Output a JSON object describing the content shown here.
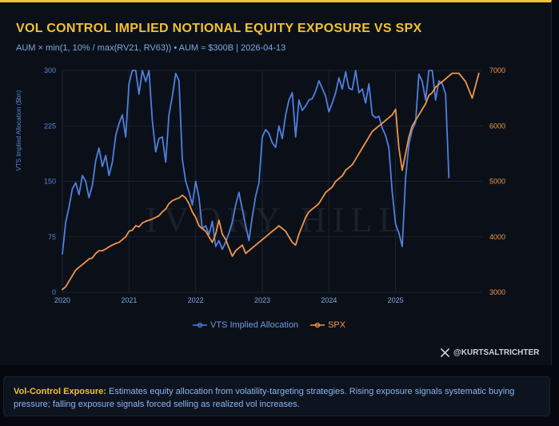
{
  "title": "VOL CONTROL IMPLIED NOTIONAL EQUITY EXPOSURE VS SPX",
  "subtitle": "AUM × min(1, 10% / max(RV21, RV63)) • AUM ≈ $300B | 2026-04-13",
  "handle": "@KURTSALTRICHTER",
  "x_icon": "x-logo-icon",
  "footer": {
    "highlight": "Vol-Control Exposure:",
    "text": " Estimates equity allocation from volatility-targeting strategies. Rising exposure signals systematic buying pressure; falling exposure signals forced selling as realized vol increases."
  },
  "colors": {
    "vts": "#4f7fe0",
    "spx": "#f0954a",
    "accent": "#f2c12e",
    "grid": "#1a2330"
  },
  "watermark": "IVORY HILL",
  "chart_data": {
    "type": "line",
    "xlabel": "",
    "ylabel": "VTS Implied Allocation ($bn)",
    "y2label": "",
    "ylim": [
      0,
      300
    ],
    "y2lim": [
      3000,
      7000
    ],
    "xlim": [
      2020.0,
      2026.3
    ],
    "x_ticks": [
      2020,
      2021,
      2022,
      2023,
      2024,
      2025
    ],
    "x_tick_labels": [
      "2020",
      "2021",
      "2022",
      "2023",
      "2024",
      "2025"
    ],
    "y_ticks": [
      0,
      75,
      150,
      225,
      300
    ],
    "y_tick_labels": [
      "0",
      "75",
      "150",
      "225",
      "300"
    ],
    "y2_ticks": [
      3000,
      4000,
      5000,
      6000,
      7000
    ],
    "y2_tick_labels": [
      "3000",
      "4000",
      "5000",
      "6000",
      "7000"
    ],
    "grid": true,
    "legend_position": "bottom-center",
    "series": [
      {
        "name": "VTS Implied Allocation",
        "axis": "left",
        "x": [
          2020.0,
          2020.05,
          2020.1,
          2020.15,
          2020.2,
          2020.25,
          2020.3,
          2020.35,
          2020.4,
          2020.45,
          2020.5,
          2020.55,
          2020.6,
          2020.65,
          2020.7,
          2020.75,
          2020.8,
          2020.85,
          2020.9,
          2020.95,
          2021.0,
          2021.05,
          2021.1,
          2021.15,
          2021.2,
          2021.25,
          2021.3,
          2021.35,
          2021.4,
          2021.45,
          2021.5,
          2021.55,
          2021.6,
          2021.65,
          2021.7,
          2021.75,
          2021.8,
          2021.85,
          2021.9,
          2021.95,
          2022.0,
          2022.05,
          2022.1,
          2022.15,
          2022.2,
          2022.25,
          2022.3,
          2022.35,
          2022.4,
          2022.45,
          2022.5,
          2022.55,
          2022.6,
          2022.65,
          2022.7,
          2022.75,
          2022.8,
          2022.85,
          2022.9,
          2022.95,
          2023.0,
          2023.05,
          2023.1,
          2023.15,
          2023.2,
          2023.25,
          2023.3,
          2023.35,
          2023.4,
          2023.45,
          2023.5,
          2023.55,
          2023.6,
          2023.65,
          2023.7,
          2023.75,
          2023.8,
          2023.85,
          2023.9,
          2023.95,
          2024.0,
          2024.05,
          2024.1,
          2024.15,
          2024.2,
          2024.25,
          2024.3,
          2024.35,
          2024.4,
          2024.45,
          2024.5,
          2024.55,
          2024.6,
          2024.65,
          2024.7,
          2024.75,
          2024.8,
          2024.85,
          2024.9,
          2024.95,
          2025.0,
          2025.05,
          2025.1,
          2025.15,
          2025.2,
          2025.25,
          2025.3,
          2025.35,
          2025.4,
          2025.45,
          2025.5,
          2025.55,
          2025.6,
          2025.65,
          2025.7,
          2025.75,
          2025.8
        ],
        "values": [
          52,
          95,
          115,
          140,
          148,
          132,
          158,
          150,
          128,
          145,
          178,
          195,
          170,
          185,
          158,
          176,
          212,
          228,
          240,
          210,
          282,
          300,
          300,
          268,
          300,
          285,
          300,
          232,
          190,
          208,
          210,
          176,
          240,
          265,
          296,
          286,
          180,
          150,
          136,
          118,
          150,
          128,
          86,
          90,
          78,
          96,
          62,
          70,
          58,
          68,
          80,
          95,
          118,
          135,
          112,
          90,
          70,
          102,
          130,
          148,
          210,
          220,
          215,
          202,
          196,
          225,
          208,
          240,
          260,
          270,
          210,
          260,
          246,
          252,
          260,
          262,
          272,
          286,
          276,
          265,
          244,
          256,
          270,
          290,
          275,
          298,
          276,
          274,
          300,
          270,
          275,
          256,
          282,
          240,
          236,
          238,
          222,
          212,
          195,
          135,
          92,
          80,
          62,
          155,
          200,
          220,
          230,
          295,
          285,
          260,
          300,
          300,
          260,
          286,
          282,
          268,
          155
        ]
      },
      {
        "name": "SPX",
        "axis": "right",
        "x": [
          2020.0,
          2020.05,
          2020.1,
          2020.15,
          2020.2,
          2020.25,
          2020.3,
          2020.35,
          2020.4,
          2020.45,
          2020.5,
          2020.55,
          2020.6,
          2020.65,
          2020.7,
          2020.75,
          2020.8,
          2020.85,
          2020.9,
          2020.95,
          2021.0,
          2021.05,
          2021.1,
          2021.15,
          2021.2,
          2021.25,
          2021.3,
          2021.35,
          2021.4,
          2021.45,
          2021.5,
          2021.55,
          2021.6,
          2021.65,
          2021.7,
          2021.75,
          2021.8,
          2021.85,
          2021.9,
          2021.95,
          2022.0,
          2022.05,
          2022.1,
          2022.15,
          2022.2,
          2022.25,
          2022.3,
          2022.35,
          2022.4,
          2022.45,
          2022.5,
          2022.55,
          2022.6,
          2022.65,
          2022.7,
          2022.75,
          2022.8,
          2022.85,
          2022.9,
          2022.95,
          2023.0,
          2023.05,
          2023.1,
          2023.15,
          2023.2,
          2023.25,
          2023.3,
          2023.35,
          2023.4,
          2023.45,
          2023.5,
          2023.55,
          2023.6,
          2023.65,
          2023.7,
          2023.75,
          2023.8,
          2023.85,
          2023.9,
          2023.95,
          2024.0,
          2024.05,
          2024.1,
          2024.15,
          2024.2,
          2024.25,
          2024.3,
          2024.35,
          2024.4,
          2024.45,
          2024.5,
          2024.55,
          2024.6,
          2024.65,
          2024.7,
          2024.75,
          2024.8,
          2024.85,
          2024.9,
          2024.95,
          2025.0,
          2025.05,
          2025.1,
          2025.15,
          2025.2,
          2025.25,
          2025.3,
          2025.35,
          2025.4,
          2025.45,
          2025.5,
          2025.55,
          2025.6,
          2025.65,
          2025.7,
          2025.75,
          2025.8,
          2025.85,
          2025.95,
          2026.05,
          2026.15,
          2026.25
        ],
        "values": [
          3050,
          3100,
          3200,
          3300,
          3400,
          3450,
          3500,
          3550,
          3600,
          3620,
          3700,
          3750,
          3750,
          3780,
          3820,
          3850,
          3880,
          3900,
          3950,
          4000,
          4100,
          4120,
          4200,
          4180,
          4250,
          4280,
          4300,
          4320,
          4350,
          4380,
          4450,
          4500,
          4600,
          4650,
          4680,
          4700,
          4750,
          4700,
          4600,
          4450,
          4350,
          4200,
          4150,
          4100,
          4000,
          3900,
          4050,
          4300,
          4050,
          3950,
          3800,
          3650,
          3750,
          3800,
          3850,
          3700,
          3750,
          3800,
          3850,
          3900,
          3950,
          4000,
          4050,
          4100,
          4150,
          4200,
          4150,
          4100,
          4000,
          3900,
          3850,
          4050,
          4200,
          4350,
          4450,
          4500,
          4550,
          4600,
          4700,
          4800,
          4850,
          4900,
          5000,
          5050,
          5100,
          5200,
          5250,
          5300,
          5400,
          5500,
          5600,
          5700,
          5800,
          5900,
          5950,
          6000,
          6050,
          6100,
          6150,
          6200,
          6300,
          5600,
          5200,
          5500,
          5800,
          6000,
          6100,
          6200,
          6300,
          6400,
          6550,
          6600,
          6700,
          6750,
          6800,
          6850,
          6900,
          6950,
          6950,
          6800,
          6500,
          6950
        ]
      }
    ]
  }
}
